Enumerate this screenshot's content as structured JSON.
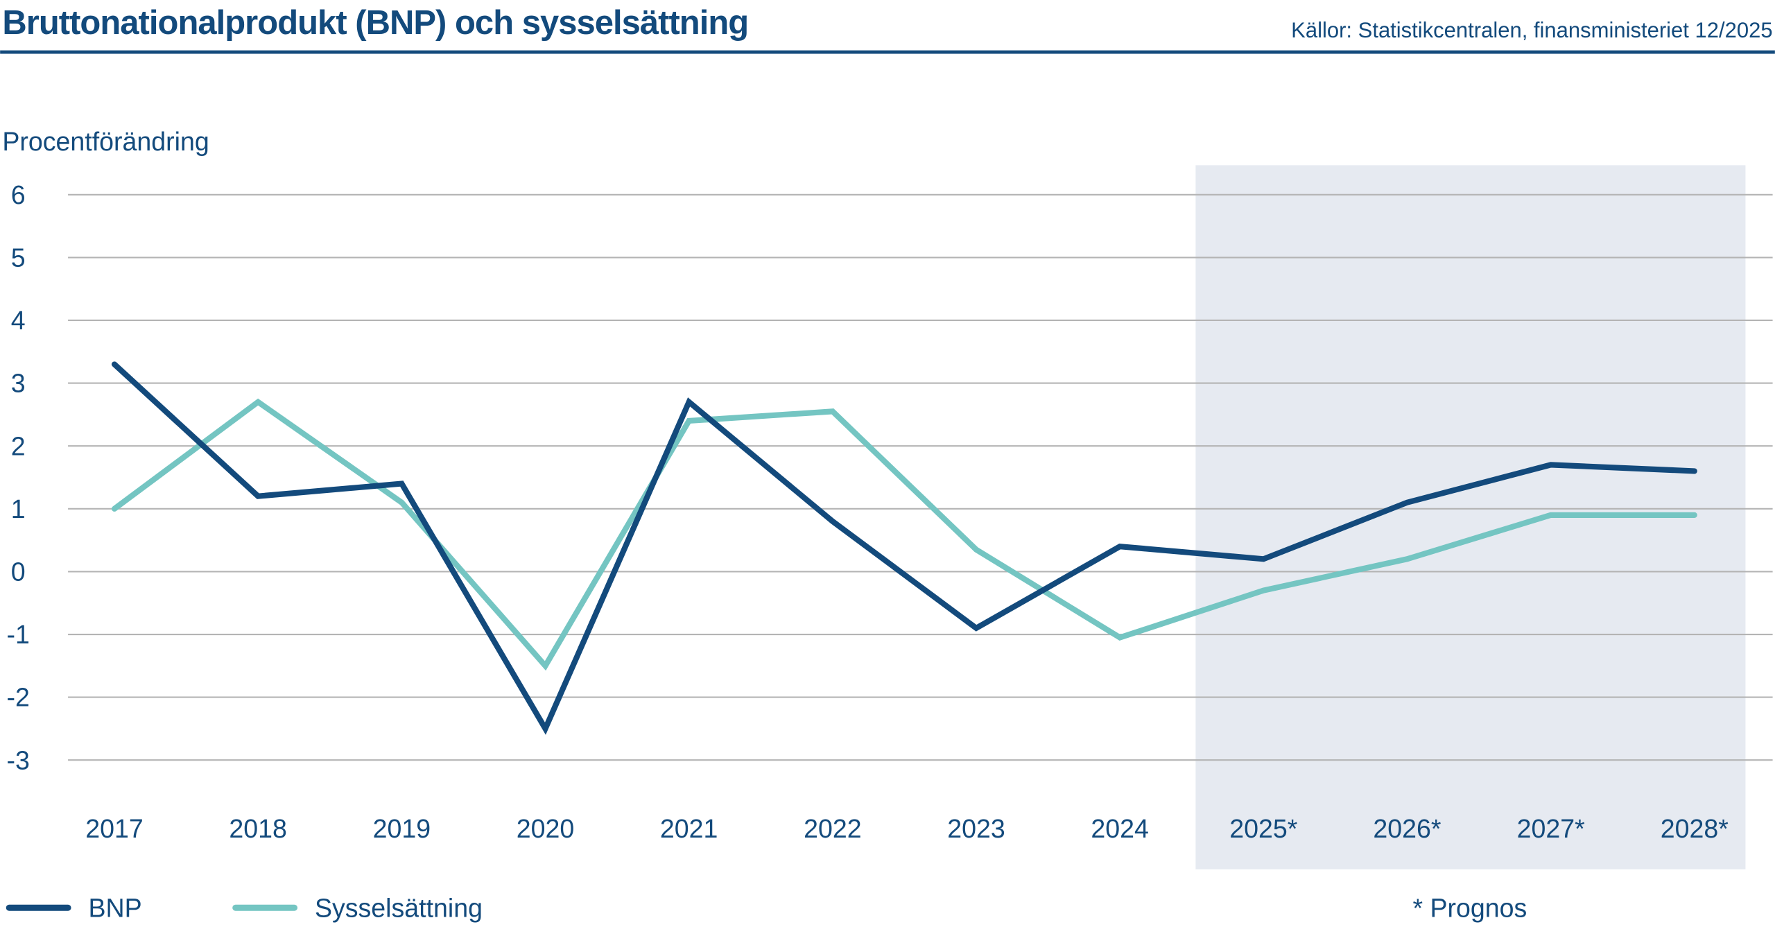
{
  "chart_data": {
    "type": "line",
    "title": "Bruttonationalprodukt (BNP) och sysselsättning",
    "source": "Källor: Statistikcentralen, finansministeriet 12/2025",
    "ylabel": "Procentförändring",
    "xlabel": "",
    "ylim": [
      -3,
      6
    ],
    "yticks": [
      6,
      5,
      4,
      3,
      2,
      1,
      0,
      -1,
      -2,
      -3
    ],
    "grid": true,
    "categories": [
      "2017",
      "2018",
      "2019",
      "2020",
      "2021",
      "2022",
      "2023",
      "2024",
      "2025*",
      "2026*",
      "2027*",
      "2028*"
    ],
    "forecast_shaded_from": "2025*",
    "forecast_note": "* Prognos",
    "legend_placement": "bottom-left",
    "series": [
      {
        "name": "BNP",
        "color": "#134a7c",
        "values": [
          3.3,
          1.2,
          1.4,
          -2.5,
          2.7,
          0.8,
          -0.9,
          0.4,
          0.2,
          1.1,
          1.7,
          1.6
        ]
      },
      {
        "name": "Sysselsättning",
        "color": "#74c5c2",
        "values": [
          1.0,
          2.7,
          1.1,
          -1.5,
          2.4,
          2.55,
          0.35,
          -1.05,
          -0.3,
          0.2,
          0.9,
          0.9
        ]
      }
    ],
    "colors": {
      "text": "#134a7c",
      "grid": "#b4b4b4",
      "forecast_band": "#e6eaf1"
    }
  }
}
